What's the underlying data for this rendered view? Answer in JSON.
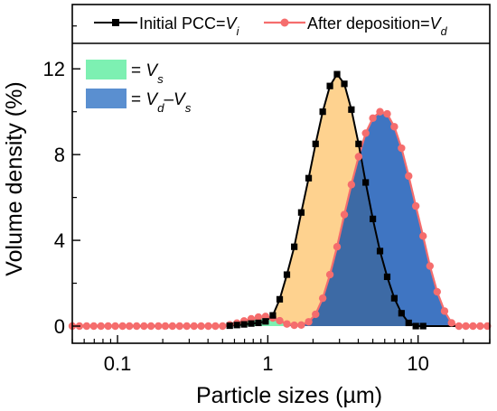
{
  "chart_data": {
    "type": "line",
    "xscale": "log",
    "xlim": [
      0.05,
      30
    ],
    "ylim": [
      -0.8,
      15
    ],
    "xticks": [
      {
        "value": 0.1,
        "label": "0.1"
      },
      {
        "value": 1,
        "label": "1"
      },
      {
        "value": 10,
        "label": "10"
      }
    ],
    "yticks": [
      {
        "value": 0,
        "label": "0"
      },
      {
        "value": 4,
        "label": "4"
      },
      {
        "value": 8,
        "label": "8"
      },
      {
        "value": 12,
        "label": "12"
      }
    ],
    "xlabel": {
      "pre": "Particle sizes (",
      "greek": "µ",
      "post": "m)"
    },
    "ylabel": "Volume density (%)",
    "x": [
      0.05,
      0.0558,
      0.0623,
      0.0695,
      0.0776,
      0.0866,
      0.0966,
      0.108,
      0.12,
      0.134,
      0.15,
      0.167,
      0.187,
      0.208,
      0.232,
      0.259,
      0.289,
      0.323,
      0.36,
      0.402,
      0.448,
      0.5,
      0.558,
      0.623,
      0.695,
      0.776,
      0.866,
      0.966,
      1.08,
      1.2,
      1.34,
      1.5,
      1.67,
      1.87,
      2.08,
      2.32,
      2.59,
      2.89,
      3.23,
      3.6,
      4.02,
      4.48,
      5.0,
      5.58,
      6.23,
      6.95,
      7.76,
      8.66,
      9.66,
      10.8,
      12.0,
      13.4,
      15.0,
      16.7,
      18.7,
      20.8,
      23.2,
      25.9,
      28.9
    ],
    "series": [
      {
        "name": "Initial PCC=Vi",
        "legend": {
          "text": "Initial PCC=",
          "sym": "V",
          "sub": "i"
        },
        "color": "#000000",
        "fill": "#fed28f",
        "marker": "square",
        "values": [
          0,
          0,
          0,
          0,
          0,
          0,
          0,
          0,
          0,
          0,
          0,
          0,
          0,
          0,
          0,
          0,
          0,
          0,
          0,
          0,
          0,
          0,
          0.02,
          0.05,
          0.08,
          0.12,
          0.15,
          0.22,
          0.5,
          1.25,
          2.4,
          3.7,
          5.3,
          6.9,
          8.5,
          10.0,
          11.2,
          11.75,
          11.3,
          10.1,
          8.5,
          6.7,
          5.0,
          3.5,
          2.3,
          1.3,
          0.6,
          0.15,
          0,
          0,
          0,
          0,
          0,
          0,
          0,
          0,
          0,
          0,
          0
        ]
      },
      {
        "name": "After deposition=Vd",
        "legend": {
          "text": "After deposition=",
          "sym": "V",
          "sub": "d"
        },
        "color": "#f56d6d",
        "fill": "#3f75c2",
        "marker": "circle",
        "values": [
          0,
          0,
          0,
          0,
          0,
          0,
          0,
          0,
          0,
          0,
          0,
          0,
          0,
          0,
          0,
          0,
          0,
          0,
          0,
          0,
          0,
          0,
          0.06,
          0.14,
          0.24,
          0.34,
          0.42,
          0.45,
          0.38,
          0.25,
          0.1,
          0.04,
          0.05,
          0.2,
          0.55,
          1.3,
          2.4,
          3.7,
          5.2,
          6.6,
          7.9,
          9.0,
          9.7,
          10.0,
          9.9,
          9.3,
          8.3,
          7.0,
          5.6,
          4.2,
          2.8,
          1.6,
          0.7,
          0.15,
          0,
          0,
          0,
          0,
          0
        ]
      }
    ],
    "areas": [
      {
        "legend": {
          "text": "= ",
          "sym": "V",
          "sub": "s"
        },
        "color": "#7df0b2"
      },
      {
        "legend": {
          "text": "= ",
          "sym": "V",
          "sub": "d",
          "text2": "–",
          "sym2": "V",
          "sub2": "s"
        },
        "color": "#5a8fd0"
      }
    ],
    "grid": false
  }
}
